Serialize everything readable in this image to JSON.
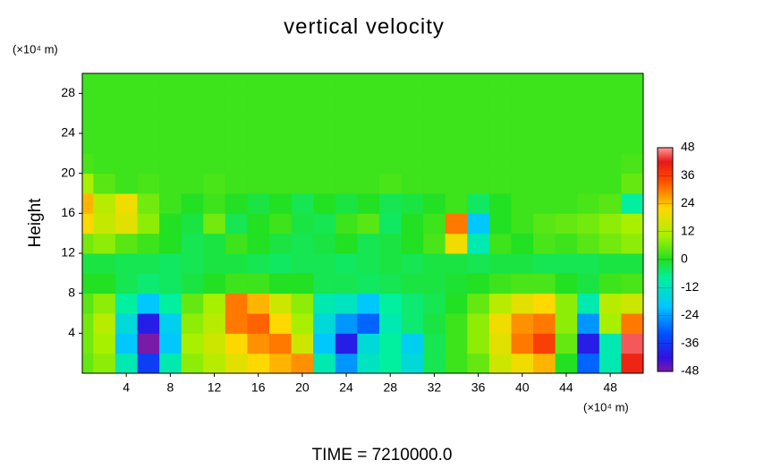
{
  "chart_data": {
    "type": "heatmap",
    "title": "vertical velocity",
    "ylabel": "Height",
    "y_unit": "(×10⁴ m)",
    "x_unit": "(×10⁴ m)",
    "footer": "TIME = 7210000.0",
    "xlim": [
      0,
      51
    ],
    "ylim": [
      0,
      30
    ],
    "xticks": [
      4,
      8,
      12,
      16,
      20,
      24,
      28,
      32,
      36,
      40,
      44,
      48
    ],
    "yticks": [
      4,
      8,
      12,
      16,
      20,
      24,
      28
    ],
    "x": [
      0,
      2,
      4,
      6,
      8,
      10,
      12,
      14,
      16,
      18,
      20,
      22,
      24,
      26,
      28,
      30,
      32,
      34,
      36,
      38,
      40,
      42,
      44,
      46,
      48,
      50
    ],
    "y": [
      1,
      3,
      5,
      7,
      9,
      11,
      13,
      15,
      17,
      19,
      21,
      23,
      25,
      27,
      29
    ],
    "z": [
      [
        5,
        8,
        -10,
        -35,
        -10,
        8,
        12,
        18,
        22,
        25,
        28,
        -10,
        -25,
        -12,
        -8,
        -15,
        -3,
        2,
        5,
        15,
        20,
        25,
        0,
        -30,
        -10,
        40
      ],
      [
        6,
        10,
        -20,
        -48,
        -20,
        10,
        15,
        22,
        28,
        30,
        15,
        -20,
        -40,
        -15,
        -8,
        -18,
        -3,
        2,
        8,
        18,
        30,
        36,
        5,
        -40,
        -10,
        45
      ],
      [
        6,
        12,
        -15,
        -40,
        -18,
        8,
        12,
        30,
        32,
        22,
        10,
        -15,
        -25,
        -30,
        -10,
        -5,
        -2,
        2,
        8,
        20,
        28,
        30,
        8,
        -25,
        10,
        30
      ],
      [
        4,
        8,
        -8,
        -20,
        -8,
        5,
        10,
        30,
        25,
        15,
        8,
        -10,
        -12,
        -20,
        -8,
        -5,
        -3,
        0,
        5,
        12,
        18,
        22,
        8,
        -10,
        12,
        15
      ],
      [
        0,
        0,
        -3,
        -5,
        -4,
        -2,
        0,
        2,
        2,
        0,
        0,
        -3,
        -3,
        -4,
        -3,
        -2,
        -2,
        -1,
        0,
        2,
        3,
        3,
        0,
        -2,
        2,
        3
      ],
      [
        -2,
        -2,
        -3,
        -3,
        -4,
        -3,
        -2,
        -2,
        -3,
        -4,
        -3,
        -3,
        -4,
        -3,
        -2,
        -3,
        -2,
        -2,
        -3,
        -2,
        -2,
        -3,
        -3,
        -3,
        -2,
        -2
      ],
      [
        6,
        8,
        4,
        2,
        0,
        -3,
        -2,
        2,
        0,
        -2,
        -3,
        -2,
        0,
        -3,
        -2,
        0,
        3,
        20,
        -10,
        2,
        0,
        3,
        2,
        4,
        6,
        8
      ],
      [
        22,
        14,
        18,
        8,
        0,
        -2,
        6,
        -3,
        0,
        2,
        -2,
        -3,
        2,
        4,
        -4,
        0,
        2,
        30,
        -20,
        0,
        2,
        4,
        5,
        6,
        8,
        10
      ],
      [
        25,
        12,
        20,
        6,
        2,
        0,
        2,
        0,
        -2,
        0,
        -3,
        0,
        -2,
        0,
        -3,
        -2,
        0,
        2,
        -4,
        0,
        2,
        2,
        2,
        3,
        4,
        -8
      ],
      [
        10,
        4,
        2,
        3,
        2,
        2,
        3,
        2,
        2,
        2,
        2,
        2,
        2,
        2,
        3,
        2,
        2,
        2,
        2,
        2,
        2,
        2,
        2,
        2,
        2,
        5
      ],
      [
        3,
        2,
        2,
        2,
        2,
        2,
        2,
        2,
        2,
        2,
        2,
        2,
        2,
        2,
        2,
        2,
        2,
        2,
        2,
        2,
        2,
        2,
        2,
        2,
        2,
        3
      ],
      [
        2,
        2,
        2,
        2,
        2,
        2,
        2,
        2,
        2,
        2,
        2,
        2,
        2,
        2,
        2,
        2,
        2,
        2,
        2,
        2,
        2,
        2,
        2,
        2,
        2,
        2
      ],
      [
        2,
        2,
        2,
        2,
        2,
        2,
        2,
        2,
        2,
        2,
        2,
        2,
        2,
        2,
        2,
        2,
        2,
        2,
        2,
        2,
        2,
        2,
        2,
        2,
        2,
        2
      ],
      [
        2,
        2,
        2,
        2,
        2,
        2,
        2,
        2,
        2,
        2,
        2,
        2,
        2,
        2,
        2,
        2,
        2,
        2,
        2,
        2,
        2,
        2,
        2,
        2,
        2,
        2
      ],
      [
        2,
        2,
        2,
        2,
        2,
        2,
        2,
        2,
        2,
        2,
        2,
        2,
        2,
        2,
        2,
        2,
        2,
        2,
        2,
        2,
        2,
        2,
        2,
        2,
        2,
        2
      ]
    ],
    "clim": [
      -48,
      48
    ],
    "cticks": [
      -48,
      -36,
      -24,
      -12,
      0,
      12,
      24,
      36,
      48
    ],
    "colorscale": [
      {
        "value": -48,
        "color": "#7a1aa8"
      },
      {
        "value": -42,
        "color": "#3010e0"
      },
      {
        "value": -32,
        "color": "#0050ff"
      },
      {
        "value": -20,
        "color": "#00c8ff"
      },
      {
        "value": -8,
        "color": "#00f0a0"
      },
      {
        "value": 0,
        "color": "#22e022"
      },
      {
        "value": 10,
        "color": "#a8f000"
      },
      {
        "value": 22,
        "color": "#ffd800"
      },
      {
        "value": 34,
        "color": "#ff4a00"
      },
      {
        "value": 42,
        "color": "#e81818"
      },
      {
        "value": 48,
        "color": "#ff9a9a"
      }
    ]
  }
}
